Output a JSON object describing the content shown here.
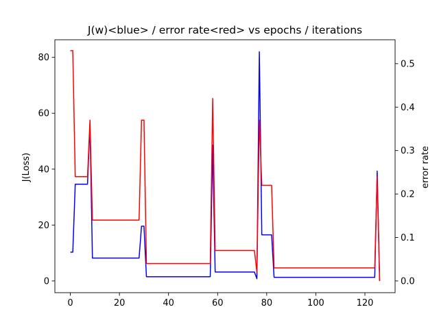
{
  "chart_data": {
    "type": "line",
    "title": "J(w)<blue> / error rate<red> vs epochs / iterations",
    "xlabel": "",
    "ylabel_left": "J(Loss)",
    "ylabel_right": "error rate",
    "xlim": [
      -6.3,
      132.3
    ],
    "ylim_left": [
      -4.2,
      86.3
    ],
    "ylim_right": [
      -0.027,
      0.555
    ],
    "x_ticks": [
      0,
      20,
      40,
      60,
      80,
      100,
      120
    ],
    "y_left_ticks": [
      0,
      20,
      40,
      60,
      80
    ],
    "y_right_ticks": [
      0.0,
      0.1,
      0.2,
      0.3,
      0.4,
      0.5
    ],
    "grid": false,
    "series": [
      {
        "color": "#0000ff",
        "axis": "left",
        "x": [
          0,
          1,
          2,
          7,
          8,
          9,
          28,
          29,
          30,
          31,
          57,
          58,
          59,
          75,
          76,
          77,
          78,
          82,
          83,
          124,
          125,
          126
        ],
        "values": [
          10.3,
          10.3,
          34.6,
          34.6,
          56.0,
          8.2,
          8.2,
          19.6,
          19.6,
          1.5,
          1.5,
          48.6,
          3.2,
          3.2,
          0.8,
          82.0,
          16.5,
          16.5,
          1.3,
          1.3,
          39.3,
          0.0
        ]
      },
      {
        "color": "#ff0000",
        "axis": "right",
        "x": [
          0,
          1,
          2,
          7,
          8,
          9,
          28,
          29,
          30,
          31,
          57,
          58,
          59,
          75,
          76,
          77,
          78,
          82,
          83,
          124,
          125,
          126
        ],
        "values": [
          0.53,
          0.53,
          0.24,
          0.24,
          0.37,
          0.14,
          0.14,
          0.37,
          0.37,
          0.04,
          0.04,
          0.42,
          0.07,
          0.07,
          0.02,
          0.37,
          0.22,
          0.22,
          0.03,
          0.03,
          0.24,
          0.0
        ]
      }
    ]
  }
}
